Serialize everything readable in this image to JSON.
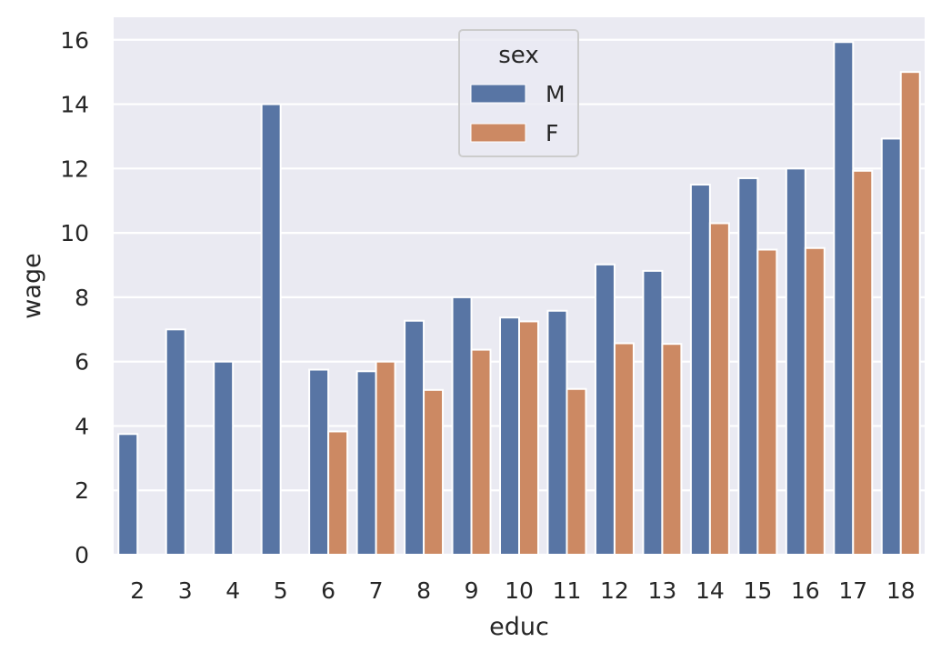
{
  "chart_data": {
    "type": "bar",
    "xlabel": "educ",
    "ylabel": "wage",
    "categories": [
      "2",
      "3",
      "4",
      "5",
      "6",
      "7",
      "8",
      "9",
      "10",
      "11",
      "12",
      "13",
      "14",
      "15",
      "16",
      "17",
      "18"
    ],
    "series": [
      {
        "name": "M",
        "color": "#5875a4",
        "values": [
          3.75,
          7.0,
          6.0,
          14.0,
          5.75,
          5.7,
          7.27,
          8.0,
          7.37,
          7.58,
          9.02,
          8.82,
          11.5,
          11.7,
          12.0,
          15.93,
          12.93
        ]
      },
      {
        "name": "F",
        "color": "#cc8963",
        "values": [
          null,
          null,
          null,
          null,
          3.83,
          6.0,
          5.12,
          6.37,
          7.25,
          5.15,
          6.57,
          6.55,
          10.3,
          9.48,
          9.53,
          11.93,
          15.0
        ]
      }
    ],
    "ylim": [
      0,
      16.7
    ],
    "yticks": [
      0,
      2,
      4,
      6,
      8,
      10,
      12,
      14,
      16
    ],
    "grid": true,
    "background": "#eaeaf2",
    "legend": {
      "title": "sex",
      "placement": "top-center",
      "entries": [
        "M",
        "F"
      ]
    }
  }
}
